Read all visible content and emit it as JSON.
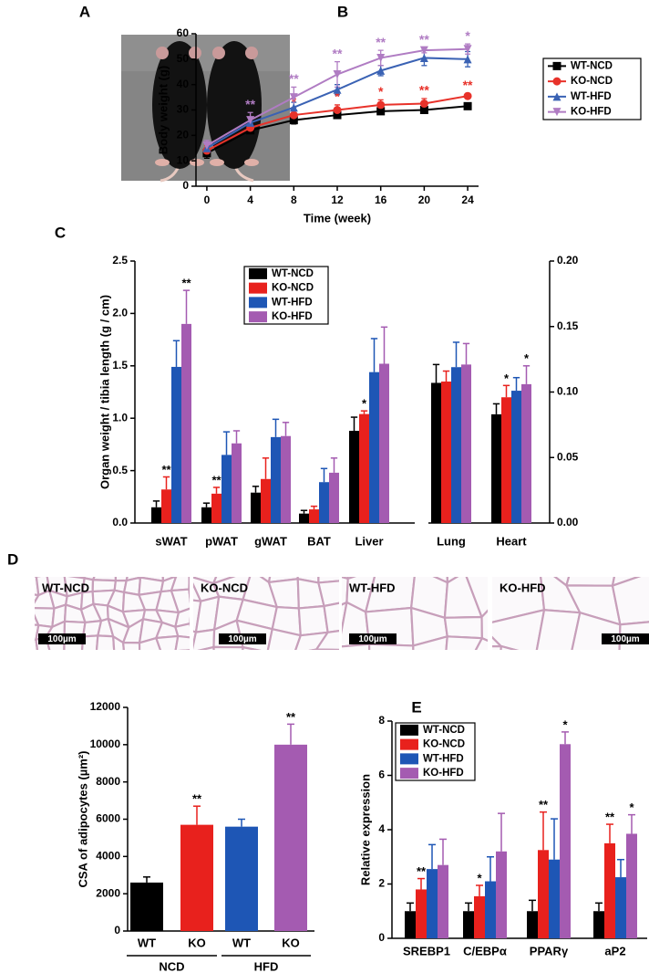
{
  "photo": {
    "panel": "A"
  },
  "histology": {
    "panel": "D",
    "images": [
      {
        "label": "WT-NCD",
        "scale_bar": "100µm"
      },
      {
        "label": "KO-NCD",
        "scale_bar": "100µm"
      },
      {
        "label": "WT-HFD",
        "scale_bar": "100µm"
      },
      {
        "label": "KO-HFD",
        "scale_bar": "100µm"
      }
    ]
  },
  "chart_data": [
    {
      "type": "line",
      "panel": "B",
      "x_label": "Time (week)",
      "y_label": "Body weight (g)",
      "legend": "right",
      "x": [
        0,
        4,
        8,
        12,
        16,
        20,
        24
      ],
      "xlim": [
        -1,
        25
      ],
      "xticks": [
        0,
        4,
        8,
        12,
        16,
        20,
        24
      ],
      "ylim": [
        0,
        60
      ],
      "yticks": [
        0,
        10,
        20,
        30,
        40,
        50,
        60
      ],
      "series": [
        {
          "name": "WT-NCD",
          "color": "#000000",
          "marker": "square",
          "values": [
            13,
            22,
            26,
            28,
            29.5,
            30,
            31.5
          ],
          "errors": [
            2,
            1,
            1.5,
            1,
            1,
            1,
            1
          ]
        },
        {
          "name": "KO-NCD",
          "color": "#e8322a",
          "marker": "circle",
          "values": [
            14,
            23,
            28,
            30,
            32,
            32.5,
            35.5
          ],
          "errors": [
            2,
            1.5,
            2,
            2,
            2,
            2,
            1
          ],
          "stars": [
            null,
            null,
            "*",
            "*",
            "*",
            "**",
            "**"
          ]
        },
        {
          "name": "WT-HFD",
          "color": "#3a62b4",
          "marker": "triangle-up",
          "values": [
            15,
            25,
            31,
            38,
            45.5,
            50.5,
            50
          ],
          "errors": [
            2,
            2,
            2,
            2,
            2,
            3,
            3
          ]
        },
        {
          "name": "KO-HFD",
          "color": "#b07cc3",
          "marker": "triangle-down",
          "values": [
            16,
            26,
            35,
            44,
            50.5,
            53.5,
            54
          ],
          "errors": [
            2,
            3,
            4,
            5,
            3,
            1,
            2
          ],
          "stars": [
            null,
            "**",
            "**",
            "**",
            "**",
            "**",
            "*"
          ]
        }
      ]
    },
    {
      "type": "bar",
      "panel": "C",
      "y_label": "Organ weight / tibia length (g / cm)",
      "legend": "upper left",
      "categories": [
        "sWAT",
        "pWAT",
        "gWAT",
        "BAT",
        "Liver",
        "Lung",
        "Heart"
      ],
      "category_axis": [
        "y",
        "y",
        "y",
        "y",
        "y",
        "y2",
        "y2"
      ],
      "ylim": [
        0,
        2.5
      ],
      "yticks": [
        {
          "value": 0,
          "label": "0.0"
        },
        0.5,
        {
          "value": 1,
          "label": "1.0"
        },
        1.5,
        {
          "value": 2,
          "label": "2.0"
        },
        2.5
      ],
      "y2lim": [
        0,
        0.2
      ],
      "y2ticks": [
        {
          "value": 0,
          "label": "0.00"
        },
        0.05,
        {
          "value": 0.1,
          "label": "0.10"
        },
        0.15,
        {
          "value": 0.2,
          "label": "0.20"
        }
      ],
      "series": [
        {
          "name": "WT-NCD",
          "color": "#000000",
          "values": [
            0.15,
            0.15,
            0.29,
            0.09,
            0.88,
            0.107,
            0.083
          ],
          "errors": [
            0.06,
            0.04,
            0.06,
            0.03,
            0.13,
            0.014,
            0.008
          ]
        },
        {
          "name": "KO-NCD",
          "color": "#e8211d",
          "values": [
            0.32,
            0.28,
            0.42,
            0.13,
            1.04,
            0.108,
            0.096
          ],
          "errors": [
            0.12,
            0.06,
            0.2,
            0.03,
            0.03,
            0.008,
            0.009
          ],
          "stars": [
            "**",
            "**",
            null,
            null,
            "*",
            null,
            "*"
          ]
        },
        {
          "name": "WT-HFD",
          "color": "#1e56b5",
          "values": [
            1.49,
            0.65,
            0.82,
            0.39,
            1.44,
            0.119,
            0.101
          ],
          "errors": [
            0.25,
            0.22,
            0.17,
            0.13,
            0.32,
            0.019,
            0.01
          ]
        },
        {
          "name": "KO-HFD",
          "color": "#a45bb1",
          "values": [
            1.9,
            0.76,
            0.83,
            0.48,
            1.52,
            0.121,
            0.106
          ],
          "errors": [
            0.32,
            0.12,
            0.13,
            0.14,
            0.35,
            0.016,
            0.014
          ],
          "stars": [
            "**",
            null,
            null,
            null,
            null,
            null,
            "*"
          ]
        }
      ]
    },
    {
      "type": "bar",
      "y_label": "CSA of adipocytes (µm²)",
      "categories": [
        "WT",
        "KO",
        "WT",
        "KO"
      ],
      "groups": [
        "NCD",
        "HFD"
      ],
      "ylim": [
        0,
        12000
      ],
      "yticks": [
        0,
        2000,
        4000,
        6000,
        8000,
        10000,
        12000
      ],
      "values": [
        2600,
        5700,
        5600,
        10000
      ],
      "errors": [
        300,
        1000,
        400,
        1100
      ],
      "colors": [
        "#000000",
        "#e8211d",
        "#1e56b5",
        "#a45bb1"
      ],
      "stars": [
        null,
        "**",
        null,
        "**"
      ]
    },
    {
      "type": "bar",
      "panel": "E",
      "y_label": "Relative expression",
      "legend": "upper left",
      "categories": [
        "SREBP1",
        "C/EBPα",
        "PPARγ",
        "aP2"
      ],
      "ylim": [
        0,
        8
      ],
      "yticks": [
        0,
        2,
        4,
        6,
        8
      ],
      "series": [
        {
          "name": "WT-NCD",
          "color": "#000000",
          "values": [
            1.0,
            1.0,
            1.0,
            1.0
          ],
          "errors": [
            0.3,
            0.3,
            0.4,
            0.3
          ]
        },
        {
          "name": "KO-NCD",
          "color": "#e8211d",
          "values": [
            1.8,
            1.55,
            3.25,
            3.5
          ],
          "errors": [
            0.4,
            0.4,
            1.4,
            0.7
          ],
          "stars": [
            "**",
            "*",
            "**",
            "**"
          ]
        },
        {
          "name": "WT-HFD",
          "color": "#1e56b5",
          "values": [
            2.55,
            2.1,
            2.9,
            2.25
          ],
          "errors": [
            0.9,
            0.9,
            1.5,
            0.65
          ]
        },
        {
          "name": "KO-HFD",
          "color": "#a45bb1",
          "values": [
            2.7,
            3.2,
            7.15,
            3.85
          ],
          "errors": [
            0.95,
            1.4,
            0.45,
            0.7
          ],
          "stars": [
            null,
            null,
            "*",
            "*"
          ]
        }
      ]
    }
  ]
}
